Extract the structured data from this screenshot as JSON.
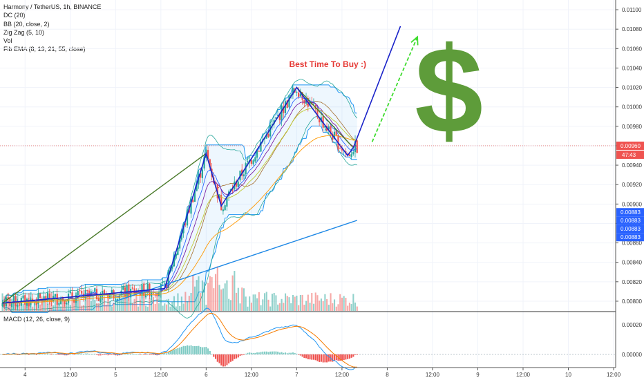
{
  "legend": {
    "symbol_line": "Harmony / TetherUS, 1h, BINANCE",
    "indicators": [
      "DC (20)",
      "BB (20, close, 2)",
      "Zig Zag (5, 10)",
      "Vol",
      "Fib EMA (8, 13, 21, 55, close)"
    ]
  },
  "macd_label": "MACD (12, 26, close, 9)",
  "annotation": "Best Time To Buy :)",
  "dollar_sign": "$",
  "colors": {
    "up": "#26a69a",
    "down": "#ef5350",
    "zigzag": "#1a23c9",
    "trend": "#4a7a2a",
    "arrow": "#3ddc2c",
    "dollar": "#5e9c3a",
    "price_line": "#e57373",
    "blue_badge": "#2962ff",
    "macd_line": "#2196f3",
    "signal_line": "#f57c00"
  },
  "chart_data": {
    "type": "candlestick",
    "y_range": [
      0.0079,
      0.0111
    ],
    "y_ticks": [
      "0.01100",
      "0.01080",
      "0.01060",
      "0.01040",
      "0.01020",
      "0.01000",
      "0.00980",
      "0.00960",
      "0.00940",
      "0.00920",
      "0.00900",
      "0.00880",
      "0.00860",
      "0.00840",
      "0.00820",
      "0.00800"
    ],
    "y_tick_values": [
      0.011,
      0.0108,
      0.0106,
      0.0104,
      0.0102,
      0.01,
      0.0098,
      0.0096,
      0.0094,
      0.0092,
      0.009,
      0.0088,
      0.0086,
      0.0084,
      0.0082,
      0.008
    ],
    "x_ticks": [
      "4",
      "12:00",
      "5",
      "12:00",
      "6",
      "12:00",
      "7",
      "12:00",
      "8",
      "12:00",
      "9",
      "12:00",
      "10",
      "12:00"
    ],
    "x_tick_bars": [
      12,
      36,
      60,
      84,
      108,
      132,
      156,
      180,
      204,
      228,
      252,
      276,
      300,
      324
    ],
    "current_price": "0.00960",
    "countdown": "47:43",
    "badges": [
      "0.00883",
      "0.00883",
      "0.00883",
      "0.00883"
    ],
    "badge_value": 0.00883,
    "current_value": 0.0096,
    "macd_y_ticks": [
      "0.00020",
      "0.00000"
    ],
    "macd_y_tick_values": [
      0.0002,
      0.0
    ],
    "macd_range": [
      -8e-05,
      0.00028
    ],
    "zigzag": [
      [
        0,
        0.00798
      ],
      [
        86,
        0.00813
      ],
      [
        108,
        0.00952
      ],
      [
        116,
        0.00898
      ],
      [
        156,
        0.0102
      ],
      [
        183,
        0.0095
      ],
      [
        186,
        0.00958
      ],
      [
        211,
        0.01083
      ]
    ],
    "trendline": [
      [
        0,
        0.00798
      ],
      [
        108,
        0.00952
      ],
      [
        116,
        0.00898
      ],
      [
        156,
        0.0102
      ],
      [
        186,
        0.00958
      ]
    ],
    "arrow": [
      [
        196,
        0.00964
      ],
      [
        220,
        0.01072
      ]
    ],
    "annotation_pos": [
      152,
      0.01043
    ],
    "dollar_pos": [
      220,
      0.0108
    ],
    "bar_count": 189
  }
}
